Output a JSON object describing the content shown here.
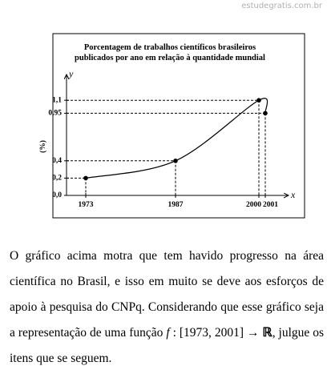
{
  "watermark": "estudegratis.com.br",
  "chart_data": {
    "type": "line",
    "title": [
      "Porcentagem de trabalhos científicos brasileiros",
      "publicados por ano em relação à quantidade mundial"
    ],
    "y_label": "y",
    "x_label": "x",
    "y_unit": "(%)",
    "x": [
      1973,
      1987,
      2000,
      2001
    ],
    "series": [
      {
        "color": "#000000",
        "values": [
          0.2,
          0.4,
          1.1,
          0.95
        ]
      }
    ],
    "xlim": [
      1970,
      2004
    ],
    "xticks": [
      1973,
      1987,
      2000,
      2001
    ],
    "ylim": [
      0,
      1.3
    ],
    "yticks": [
      {
        "value": 0,
        "label": "0,0"
      },
      {
        "value": 0.2,
        "label": "0,2"
      },
      {
        "value": 0.4,
        "label": "0,4"
      },
      {
        "value": 0.95,
        "label": "0,95"
      },
      {
        "value": 1.1,
        "label": "1,1"
      }
    ],
    "guides": true
  },
  "paragraph": [
    "O gráfico acima motra que tem havido progresso na área científica no Brasil, e isso em muito se deve aos esforços de apoio à pesquisa do CNPq. Considerando que esse gráfico seja a representação de uma função ",
    "f",
    " : [1973, 2001] → ",
    "ℝ",
    ", julgue os itens que se seguem."
  ]
}
